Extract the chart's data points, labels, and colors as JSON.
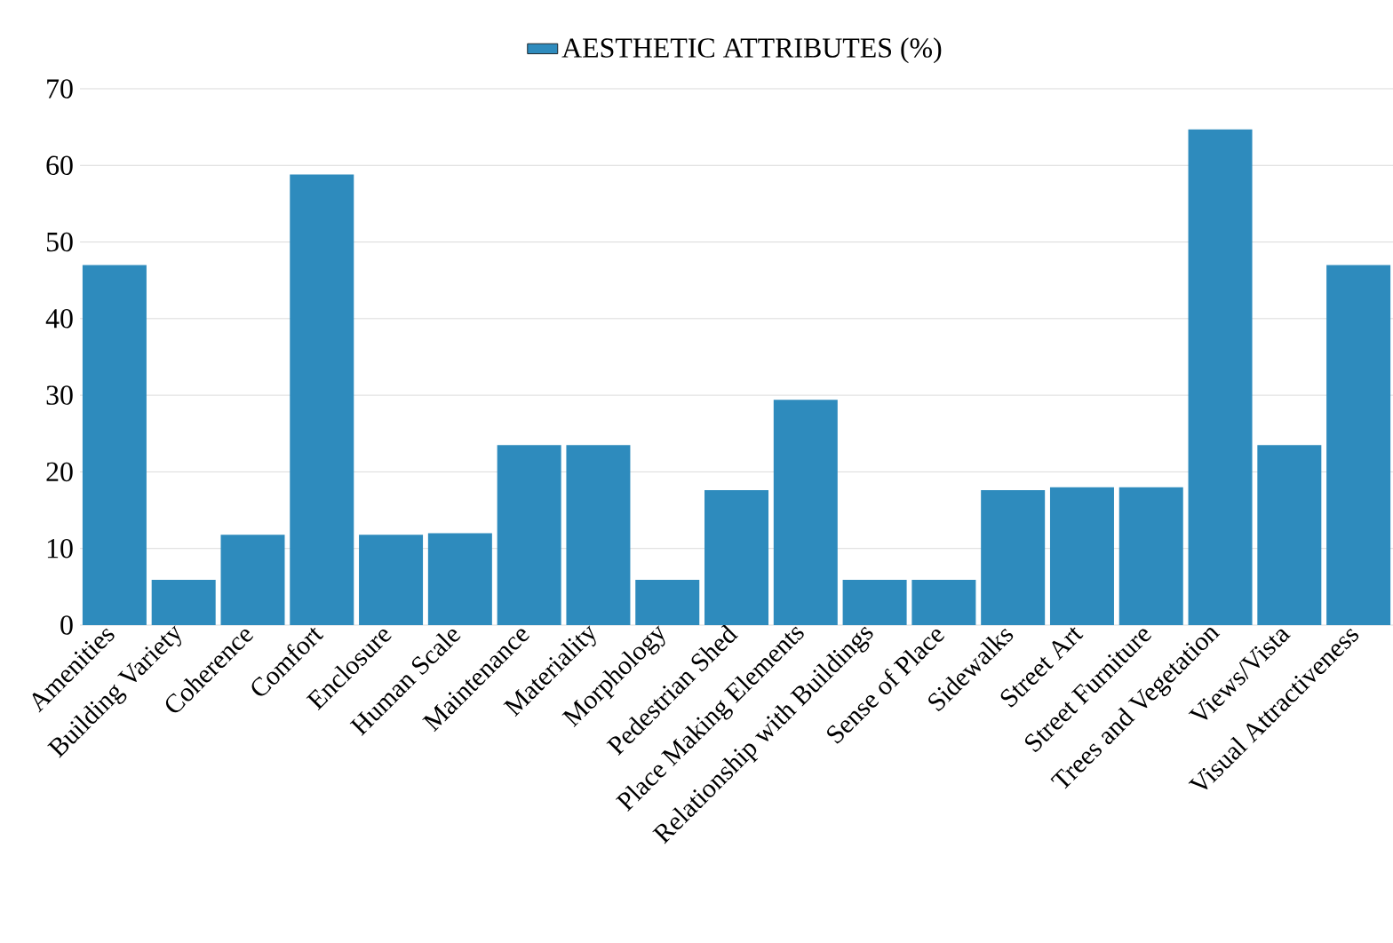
{
  "chart_data": {
    "type": "bar",
    "categories": [
      "Amenities",
      "Building Variety",
      "Coherence",
      "Comfort",
      "Enclosure",
      "Human Scale",
      "Maintenance",
      "Materiality",
      "Morphology",
      "Pedestrian Shed",
      "Place Making Elements",
      "Relationship with Buildings",
      "Sense of Place",
      "Sidewalks",
      "Street Art",
      "Street Furniture",
      "Trees and Vegetation",
      "Views/Vista",
      "Visual Attractiveness"
    ],
    "series": [
      {
        "name": "AESTHETIC ATTRIBUTES (%)",
        "color": "#2e8bbd",
        "values": [
          47,
          5.9,
          11.8,
          58.8,
          11.8,
          12,
          23.5,
          23.5,
          5.9,
          17.6,
          29.4,
          5.9,
          5.9,
          17.6,
          18,
          18,
          64.7,
          23.5,
          47
        ]
      }
    ],
    "ylim": [
      0,
      70
    ],
    "yticks": [
      0,
      10,
      20,
      30,
      40,
      50,
      60,
      70
    ],
    "grid": "y",
    "legend": "top"
  }
}
